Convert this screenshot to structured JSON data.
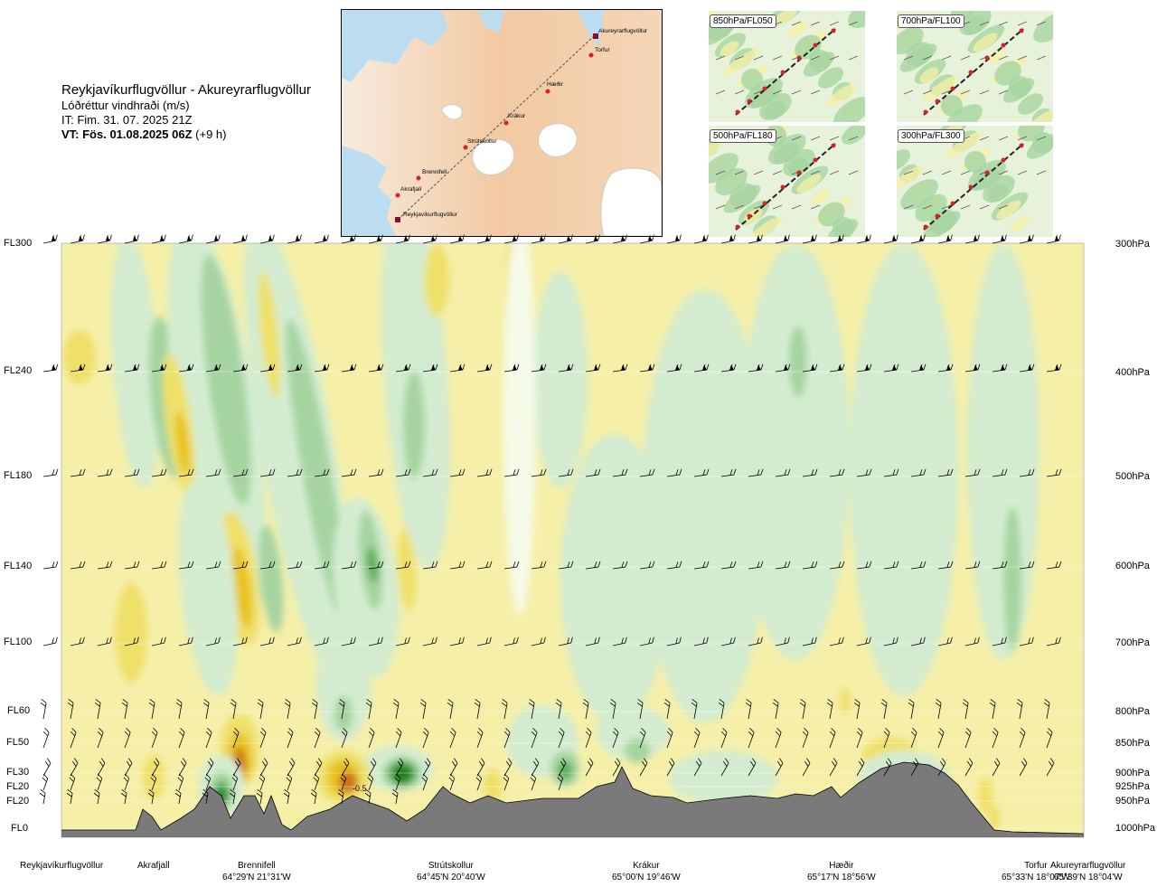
{
  "header": {
    "route": "Reykjavíkurflugvöllur - Akureyrarflugvöllur",
    "variable": "Lóðréttur vindhraði (m/s)",
    "it": "IT: Fim. 31. 07. 2025 21Z",
    "vt_bold": "VT: Fös. 01.08.2025 06Z",
    "vt_rest": " (+9 h)"
  },
  "map": {
    "waypoints": [
      "Akureyrarflugvöllur",
      "Torfur",
      "Hæðir",
      "Krákur",
      "Strútskollur",
      "Brennifell",
      "Akrafjall",
      "Reykjavíkurflugvöllur"
    ]
  },
  "thumbnails": [
    {
      "label": "850hPa/FL050"
    },
    {
      "label": "700hPa/FL100"
    },
    {
      "label": "500hPa/FL180"
    },
    {
      "label": "300hPa/FL300"
    }
  ],
  "levels": [
    {
      "fl": "FL300",
      "hpa": "300hPa"
    },
    {
      "fl": "FL240",
      "hpa": "400hPa"
    },
    {
      "fl": "FL180",
      "hpa": "500hPa"
    },
    {
      "fl": "FL140",
      "hpa": "600hPa"
    },
    {
      "fl": "FL100",
      "hpa": "700hPa"
    },
    {
      "fl": "FL60",
      "hpa": "800hPa"
    },
    {
      "fl": "FL50",
      "hpa": "850hPa"
    },
    {
      "fl": "FL30",
      "hpa": "900hPa"
    },
    {
      "fl": "FL20",
      "hpa": "925hPa"
    },
    {
      "fl": "FL20",
      "hpa": "950hPa"
    },
    {
      "fl": "FL0",
      "hpa": "1000hPa"
    }
  ],
  "bottom": [
    {
      "name": "Reykjavíkurflugvöllur",
      "coord": ""
    },
    {
      "name": "Akrafjall",
      "coord": ""
    },
    {
      "name": "Brennifell",
      "coord": "64°29'N 21°31'W"
    },
    {
      "name": "Strútskollur",
      "coord": "64°45'N 20°40'W"
    },
    {
      "name": "Krákur",
      "coord": "65°00'N 19°46'W"
    },
    {
      "name": "Hæðir",
      "coord": "65°17'N 18°56'W"
    },
    {
      "name": "Torfur",
      "coord": "65°33'N 18°07'W"
    },
    {
      "name": "Akureyrarflugvöllur",
      "coord": "65°39'N 18°04'W"
    }
  ],
  "chart_data": {
    "type": "heatmap",
    "title": "Reykjavíkurflugvöllur - Akureyrarflugvöllur",
    "variable": "Lóðréttur vindhraði (m/s)",
    "annotation": "-0.5",
    "colors": {
      "strong_up": "#1a7d1a",
      "moderate_up": "#5aae5a",
      "weak_up": "#a6d4a0",
      "slight_up": "#d3ecd0",
      "near_zero": "#f6fae8",
      "slight_down": "#f5efa8",
      "weak_down": "#efe06a",
      "moderate_down": "#e8c21e",
      "strong_down": "#c9731e",
      "terrain": "#7a7a7a"
    }
  }
}
